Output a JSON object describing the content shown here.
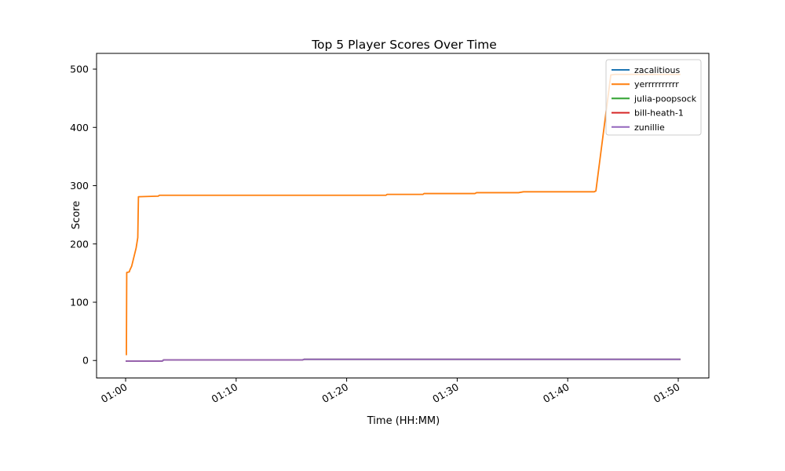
{
  "figure": {
    "background_color": "#ffffff",
    "plot_border_color": "#000000"
  },
  "chart_data": {
    "type": "line",
    "title": "Top 5 Player Scores Over Time",
    "xlabel": "Time (HH:MM)",
    "ylabel": "Score",
    "grid": false,
    "legend_position": "upper right",
    "legend_bg": "rgba(255,255,255,0.8)",
    "legend_border": "#cccccc",
    "xlim": [
      -2.63,
      52.77
    ],
    "ylim": [
      -30,
      527
    ],
    "x_encoding": "minutes after 01:00",
    "xticks": {
      "values": [
        0,
        10,
        20,
        30,
        40,
        50
      ],
      "labels": [
        "01:00",
        "01:10",
        "01:20",
        "01:30",
        "01:40",
        "01:50"
      ]
    },
    "yticks": {
      "values": [
        0,
        100,
        200,
        300,
        400,
        500
      ],
      "labels": [
        "0",
        "100",
        "200",
        "300",
        "400",
        "500"
      ]
    },
    "series": [
      {
        "name": "zacalitious",
        "color": "#1f77b4",
        "points": [
          [
            0.0,
            -1
          ],
          [
            3.3,
            -1
          ],
          [
            3.45,
            1
          ],
          [
            16.0,
            1
          ],
          [
            16.15,
            2
          ],
          [
            50.2,
            2
          ]
        ]
      },
      {
        "name": "yerrrrrrrrrr",
        "color": "#ff7f0e",
        "points": [
          [
            0.07,
            9
          ],
          [
            0.1,
            151
          ],
          [
            0.33,
            152
          ],
          [
            0.38,
            155
          ],
          [
            0.55,
            162
          ],
          [
            0.95,
            193
          ],
          [
            1.1,
            211
          ],
          [
            1.16,
            281
          ],
          [
            2.95,
            282
          ],
          [
            3.05,
            283.5
          ],
          [
            23.55,
            283.5
          ],
          [
            23.65,
            285
          ],
          [
            26.9,
            285
          ],
          [
            27.0,
            286.5
          ],
          [
            31.6,
            286.5
          ],
          [
            31.75,
            288
          ],
          [
            35.55,
            288
          ],
          [
            36.0,
            289.5
          ],
          [
            42.4,
            289.5
          ],
          [
            42.55,
            291
          ],
          [
            43.9,
            490
          ],
          [
            44.3,
            491
          ],
          [
            50.2,
            491
          ]
        ]
      },
      {
        "name": "julia-poopsock",
        "color": "#2ca02c",
        "points": [
          [
            0.0,
            -1
          ],
          [
            3.3,
            -1
          ],
          [
            3.45,
            1
          ],
          [
            16.0,
            1
          ],
          [
            16.15,
            2
          ],
          [
            50.2,
            2
          ]
        ]
      },
      {
        "name": "bill-heath-1",
        "color": "#d62728",
        "points": [
          [
            0.0,
            -1
          ],
          [
            3.3,
            -1
          ],
          [
            3.45,
            1
          ],
          [
            16.0,
            1
          ],
          [
            16.15,
            2
          ],
          [
            50.2,
            2
          ]
        ]
      },
      {
        "name": "zunillie",
        "color": "#9467bd",
        "points": [
          [
            0.0,
            -1
          ],
          [
            3.3,
            -1
          ],
          [
            3.45,
            1
          ],
          [
            16.0,
            1
          ],
          [
            16.15,
            2
          ],
          [
            50.2,
            2
          ]
        ]
      }
    ]
  }
}
